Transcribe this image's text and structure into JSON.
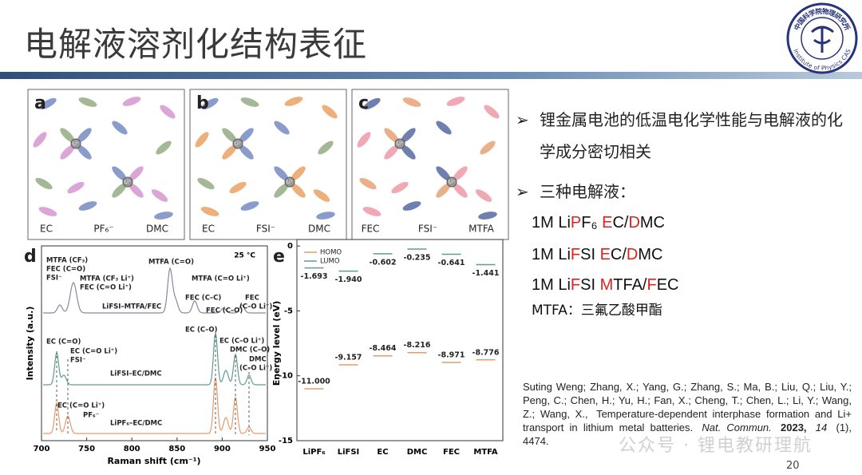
{
  "header": {
    "title": "电解液溶剂化结构表征"
  },
  "logo": {
    "name_cn": "中国科学院物理研究所",
    "name_en": "Institute of Physics CAS"
  },
  "figure": {
    "panels_abc": [
      {
        "label": "a",
        "center": "Li⁺",
        "species": [
          "EC",
          "PF₆⁻",
          "DMC"
        ]
      },
      {
        "label": "b",
        "center": "Li⁺",
        "species": [
          "EC",
          "FSI⁻",
          "DMC"
        ]
      },
      {
        "label": "c",
        "center": "Li⁺",
        "species": [
          "FEC",
          "FSI⁻",
          "MTFA"
        ]
      }
    ],
    "panel_d": {
      "label": "d",
      "xlabel": "Raman shift (cm⁻¹)",
      "ylabel": "Intensity (a.u.)",
      "temperature": "25 °C",
      "xlim": [
        700,
        950
      ],
      "xticks": [
        700,
        750,
        800,
        850,
        900,
        950
      ],
      "traces": [
        "LiFSI–MTFA/FEC",
        "LiFSI–EC/DMC",
        "LiPF₆–EC/DMC"
      ],
      "annotations": [
        "MTFA (CF₃)",
        "FEC (C=O)",
        "FSI⁻",
        "MTFA (CF₃ Li⁺)",
        "FEC (C=O Li⁺)",
        "MTFA (C=O)",
        "MTFA (C=O Li⁺)",
        "FEC (C–C)",
        "FEC (C–O)",
        "FEC",
        "(C–O Li⁺)",
        "EC (C–O)",
        "EC (C=O)",
        "EC (C=O Li⁺)",
        "FSI⁻",
        "EC (C–O Li⁺)",
        "DMC (C–O)",
        "DMC",
        "(C–O Li⁺)",
        "EC (C=O Li⁺)",
        "PF₆⁻"
      ]
    },
    "panel_e": {
      "label": "e",
      "type": "level",
      "ylabel": "Energy level (eV)",
      "categories": [
        "LiPF₆",
        "LiFSI",
        "EC",
        "DMC",
        "FEC",
        "MTFA"
      ],
      "series": [
        {
          "name": "HOMO",
          "color": "#e89a6c",
          "values": [
            -11.0,
            -9.157,
            -8.464,
            -8.216,
            -8.971,
            -8.776
          ],
          "value_labels": [
            "-11.000",
            "-9.157",
            "-8.464",
            "-8.216",
            "-8.971",
            "-8.776"
          ]
        },
        {
          "name": "LUMO",
          "color": "#5f9e8f",
          "values": [
            -1.693,
            -1.94,
            -0.602,
            -0.235,
            -0.641,
            -1.441
          ],
          "value_labels": [
            "-1.693",
            "-1.940",
            "-0.602",
            "-0.235",
            "-0.641",
            "-1.441"
          ]
        }
      ],
      "ylim": [
        -15,
        0.5
      ],
      "yticks": [
        0,
        -5,
        -10,
        -15
      ]
    }
  },
  "bullets": [
    "锂金属电池的低温电化学性能与电解液的化学成分密切相关",
    "三种电解液："
  ],
  "formulations": [
    [
      {
        "text": "1M Li"
      },
      {
        "text": "P",
        "color": "#e02020"
      },
      {
        "text": "F₆ "
      },
      {
        "text": "E",
        "color": "#e02020"
      },
      {
        "text": "C/"
      },
      {
        "text": "D",
        "color": "#e02020"
      },
      {
        "text": "MC"
      }
    ],
    [
      {
        "text": "1M Li"
      },
      {
        "text": "F",
        "color": "#e02020"
      },
      {
        "text": "SI "
      },
      {
        "text": "E",
        "color": "#e02020"
      },
      {
        "text": "C/"
      },
      {
        "text": "D",
        "color": "#e02020"
      },
      {
        "text": "MC"
      }
    ],
    [
      {
        "text": "1M Li"
      },
      {
        "text": "F",
        "color": "#e02020"
      },
      {
        "text": "SI "
      },
      {
        "text": "M",
        "color": "#e02020"
      },
      {
        "text": "TFA/"
      },
      {
        "text": "F",
        "color": "#e02020"
      },
      {
        "text": "EC"
      }
    ]
  ],
  "note": "MTFA：三氟乙酸甲酯",
  "reference": {
    "authors": "Suting Weng;  Zhang, X.;  Yang, G.;  Zhang, S.;  Ma, B.;  Liu, Q.;  Liu, Y.;  Peng, C.;  Chen, H.;  Yu, H.;  Fan, X.;  Cheng, T.;  Chen, L.;  Li, Y.;  Wang, Z.;  Wang, X.,",
    "article_title": "Temperature-dependent interphase formation and Li+ transport in lithium metal batteries.",
    "journal": "Nat. Commun.",
    "year": "2023,",
    "volume": "14",
    "issue_pages": "(1), 4474."
  },
  "watermark": "公众号 · 锂电教研理航",
  "page_number": "20"
}
